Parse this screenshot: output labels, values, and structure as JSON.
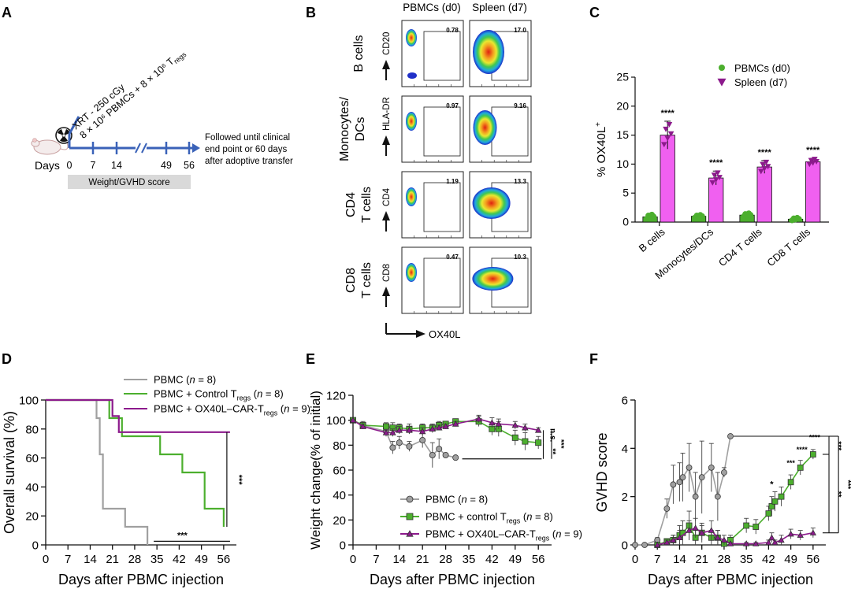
{
  "colors": {
    "blue": "#3a62b8",
    "green": "#4caf2e",
    "purple": "#8c1a8c",
    "gray": "#a0a0a0",
    "magenta": "#f060f0",
    "axis": "#111111"
  },
  "panel_labels": [
    "A",
    "B",
    "C",
    "D",
    "E",
    "F"
  ],
  "panelA": {
    "days_label": "Days",
    "day_ticks": [
      "0",
      "7",
      "14",
      "49",
      "56"
    ],
    "treatment_line1": "XRT - 250 cGy",
    "treatment_line2": "8 × 10⁶ PBMCs + 8 × 10⁶ T",
    "treatment_sub": "regs",
    "followup": [
      "Followed until clinical",
      "end point or 60 days",
      "after adoptive transfer"
    ],
    "bar_label": "Weight/GVHD score",
    "radiation_icon": "radiation-icon",
    "mouse_icon": "mouse-icon"
  },
  "panelB": {
    "col_headers": [
      "PBMCs (d0)",
      "Spleen (d7)"
    ],
    "rows": [
      {
        "label_lines": [
          "B cells"
        ],
        "marker": "CD20",
        "d0": "0.78",
        "d7": "17.0"
      },
      {
        "label_lines": [
          "Monocytes/",
          "DCs"
        ],
        "marker": "HLA-DR",
        "d0": "0.97",
        "d7": "9.16"
      },
      {
        "label_lines": [
          "CD4",
          "T cells"
        ],
        "marker": "CD4",
        "d0": "1.19",
        "d7": "13.3"
      },
      {
        "label_lines": [
          "CD8",
          "T cells"
        ],
        "marker": "CD8",
        "d0": "0.47",
        "d7": "10.3"
      }
    ],
    "xaxis": "OX40L"
  },
  "chart_data": [
    {
      "id": "C",
      "type": "bar",
      "ylabel": "% OX40L",
      "ylabel_sup": "+",
      "ylim": [
        0,
        25
      ],
      "yticks": [
        "0",
        "5",
        "10",
        "15",
        "20",
        "25"
      ],
      "categories": [
        "B cells",
        "Monocytes/DCs",
        "CD4 T cells",
        "CD8 T cells"
      ],
      "series": [
        {
          "name": "PBMCs (d0)",
          "values": [
            0.9,
            1.0,
            1.2,
            0.5
          ],
          "errors": [
            0.5,
            0.3,
            0.4,
            0.3
          ]
        },
        {
          "name": "Spleen (d7)",
          "values": [
            15.0,
            7.6,
            9.5,
            10.4
          ],
          "errors": [
            2.4,
            1.2,
            1.1,
            0.6
          ]
        }
      ],
      "significance": [
        "****",
        "****",
        "****",
        "****"
      ]
    },
    {
      "id": "D",
      "type": "line",
      "ylabel": "Overall survival (%)",
      "xlabel": "Days after PBMC injection",
      "xlim": [
        0,
        60
      ],
      "ylim": [
        0,
        100
      ],
      "xticks": [
        "0",
        "7",
        "14",
        "21",
        "28",
        "35",
        "42",
        "49",
        "56"
      ],
      "yticks": [
        "0",
        "20",
        "40",
        "60",
        "80",
        "100"
      ],
      "series": [
        {
          "name": "PBMC",
          "n": "8",
          "steps": [
            [
              0,
              100
            ],
            [
              16,
              100
            ],
            [
              16,
              87.5
            ],
            [
              17,
              87.5
            ],
            [
              17,
              62.5
            ],
            [
              18,
              62.5
            ],
            [
              18,
              25
            ],
            [
              25,
              25
            ],
            [
              25,
              12.5
            ],
            [
              32,
              12.5
            ],
            [
              32,
              0
            ]
          ]
        },
        {
          "name": "PBMC + Control T",
          "sub": "regs",
          "n": "8",
          "steps": [
            [
              0,
              100
            ],
            [
              20,
              100
            ],
            [
              20,
              87.5
            ],
            [
              24,
              87.5
            ],
            [
              24,
              75
            ],
            [
              36,
              75
            ],
            [
              36,
              62.5
            ],
            [
              43,
              62.5
            ],
            [
              43,
              50
            ],
            [
              50,
              50
            ],
            [
              50,
              25
            ],
            [
              56,
              25
            ],
            [
              56,
              12.5
            ]
          ]
        },
        {
          "name": "PBMC + OX40L–CAR-T",
          "sub": "regs",
          "n": "9",
          "steps": [
            [
              0,
              100
            ],
            [
              21,
              100
            ],
            [
              21,
              88.9
            ],
            [
              23,
              88.9
            ],
            [
              23,
              77.8
            ],
            [
              58,
              77.8
            ]
          ]
        }
      ],
      "significance": [
        "***",
        "***"
      ]
    },
    {
      "id": "E",
      "type": "line",
      "ylabel": "Weight change(% of initial)",
      "xlabel": "Days after PBMC injection",
      "xlim": [
        0,
        60
      ],
      "ylim": [
        0,
        120
      ],
      "xticks": [
        "0",
        "7",
        "14",
        "21",
        "28",
        "35",
        "42",
        "49",
        "56"
      ],
      "yticks": [
        "0",
        "20",
        "40",
        "60",
        "80",
        "100",
        "120"
      ],
      "series": [
        {
          "name": "PBMC",
          "n": "8",
          "x": [
            0,
            3,
            10,
            12,
            14,
            17,
            21,
            24,
            26,
            28,
            31
          ],
          "y": [
            100,
            96,
            91,
            78,
            82,
            79,
            84,
            72,
            77,
            72,
            70
          ],
          "err": [
            2,
            3,
            4,
            5,
            5,
            4,
            6,
            10,
            8,
            0,
            0
          ]
        },
        {
          "name": "PBMC + control T",
          "sub": "regs",
          "n": "8",
          "x": [
            0,
            3,
            10,
            12,
            14,
            17,
            21,
            24,
            26,
            28,
            31,
            38,
            42,
            44,
            49,
            52,
            56
          ],
          "y": [
            100,
            96,
            95,
            94,
            94,
            93,
            94,
            94,
            96,
            97,
            99,
            99,
            93,
            93,
            86,
            83,
            82
          ],
          "err": [
            1,
            2,
            3,
            4,
            3,
            4,
            3,
            3,
            3,
            2,
            2,
            4,
            5,
            6,
            6,
            7,
            5
          ]
        },
        {
          "name": "PBMC + OX40L–CAR-T",
          "sub": "regs",
          "n": "9",
          "x": [
            0,
            3,
            10,
            12,
            14,
            17,
            21,
            24,
            26,
            28,
            31,
            38,
            42,
            44,
            49,
            52,
            56
          ],
          "y": [
            100,
            95,
            90,
            90,
            92,
            92,
            91,
            93,
            94,
            95,
            97,
            101,
            98,
            97,
            96,
            94,
            92
          ],
          "err": [
            1,
            2,
            2,
            3,
            3,
            3,
            3,
            3,
            2,
            2,
            2,
            3,
            4,
            4,
            3,
            3,
            2
          ]
        }
      ],
      "significance": [
        "n.s.",
        "**",
        "***"
      ]
    },
    {
      "id": "F",
      "type": "line",
      "ylabel": "GVHD score",
      "xlabel": "Days after PBMC injection",
      "xlim": [
        0,
        60
      ],
      "ylim": [
        0,
        6
      ],
      "xticks": [
        "0",
        "7",
        "14",
        "21",
        "28",
        "35",
        "42",
        "49",
        "56"
      ],
      "yticks": [
        "0",
        "2",
        "4",
        "6"
      ],
      "series": [
        {
          "name": "PBMC",
          "x": [
            0,
            3,
            7,
            10,
            12,
            14,
            15,
            17,
            19,
            21,
            24,
            26,
            28,
            30
          ],
          "y": [
            0,
            0,
            0.2,
            1.5,
            2.5,
            2.6,
            2.8,
            3.2,
            2.0,
            2.8,
            3.2,
            2.0,
            3.0,
            4.5
          ],
          "err": [
            0,
            0,
            0.1,
            0.4,
            0.8,
            0.8,
            1.0,
            1.0,
            1.0,
            1.5,
            1.0,
            1.0,
            0.2,
            0
          ]
        },
        {
          "name": "PBMC + control T",
          "sub": "regs",
          "x": [
            7,
            10,
            12,
            14,
            15,
            17,
            19,
            21,
            24,
            26,
            28,
            30,
            35,
            38,
            42,
            43,
            44,
            46,
            49,
            52,
            56
          ],
          "y": [
            0,
            0.15,
            0.2,
            0.4,
            0.5,
            0.8,
            0.3,
            0.5,
            0.3,
            0.3,
            0.05,
            0.2,
            0.8,
            0.75,
            1.3,
            1.6,
            1.8,
            2.0,
            2.6,
            3.2,
            3.75
          ],
          "err": [
            0,
            0.1,
            0.2,
            0.4,
            0.5,
            0.6,
            0.3,
            0.4,
            0.3,
            0.3,
            0.1,
            0.2,
            0.3,
            0.3,
            0.3,
            0.4,
            0.4,
            0.4,
            0.3,
            0.3,
            0.2
          ]
        },
        {
          "name": "PBMC + OX40L–CAR-T",
          "sub": "regs",
          "x": [
            7,
            10,
            12,
            14,
            17,
            19,
            21,
            24,
            26,
            28,
            30,
            35,
            38,
            42,
            43,
            44,
            46,
            49,
            52,
            56
          ],
          "y": [
            0,
            0.1,
            0.2,
            0.3,
            0.6,
            0.7,
            0.5,
            0.6,
            0.3,
            0.2,
            0.05,
            0.05,
            0.05,
            0.1,
            0.3,
            0.1,
            0.2,
            0.45,
            0.4,
            0.5
          ],
          "err": [
            0,
            0.1,
            0.2,
            0.3,
            0.4,
            0.4,
            0.3,
            0.4,
            0.3,
            0.2,
            0.05,
            0.05,
            0.05,
            0.1,
            0.2,
            0.1,
            0.2,
            0.2,
            0.2,
            0.2
          ]
        }
      ],
      "significance": [
        "*",
        "***",
        "****",
        "****",
        "***",
        "**",
        "***"
      ]
    }
  ]
}
